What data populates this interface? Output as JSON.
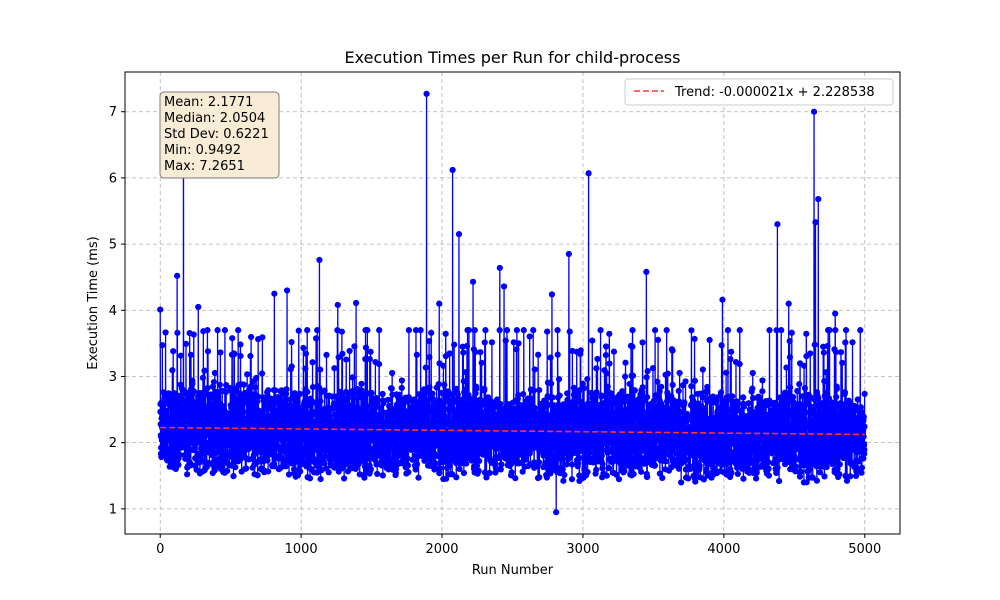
{
  "chart_data": {
    "type": "line",
    "title": "Execution Times per Run for child-process",
    "xlabel": "Run Number",
    "ylabel": "Execution Time (ms)",
    "xlim": [
      -250,
      5250
    ],
    "ylim": [
      0.62,
      7.6
    ],
    "xticks": [
      0,
      1000,
      2000,
      3000,
      4000,
      5000
    ],
    "yticks": [
      1,
      2,
      3,
      4,
      5,
      6,
      7
    ],
    "grid": true,
    "legend_position": "top-right",
    "colors": {
      "series": "#0000ff",
      "trend": "#ff3333",
      "stats_box_fill": "#f9ecd6",
      "stats_box_border": "#7a7a7a"
    },
    "series": [
      {
        "name": "",
        "n_points": 5000,
        "color": "#0000ff",
        "x_range": [
          0,
          4999
        ],
        "typical_range": [
          1.3,
          3.4
        ],
        "spikes": [
          {
            "x": 0,
            "y": 4.01
          },
          {
            "x": 120,
            "y": 4.52
          },
          {
            "x": 165,
            "y": 7.18
          },
          {
            "x": 270,
            "y": 4.05
          },
          {
            "x": 810,
            "y": 4.25
          },
          {
            "x": 900,
            "y": 4.3
          },
          {
            "x": 1130,
            "y": 4.76
          },
          {
            "x": 1260,
            "y": 4.08
          },
          {
            "x": 1390,
            "y": 4.11
          },
          {
            "x": 1890,
            "y": 7.27
          },
          {
            "x": 1980,
            "y": 4.1
          },
          {
            "x": 2075,
            "y": 6.12
          },
          {
            "x": 2120,
            "y": 5.15
          },
          {
            "x": 2220,
            "y": 4.43
          },
          {
            "x": 2410,
            "y": 4.64
          },
          {
            "x": 2440,
            "y": 4.36
          },
          {
            "x": 2780,
            "y": 4.24
          },
          {
            "x": 2900,
            "y": 4.85
          },
          {
            "x": 3040,
            "y": 6.07
          },
          {
            "x": 3450,
            "y": 4.58
          },
          {
            "x": 3990,
            "y": 4.16
          },
          {
            "x": 4380,
            "y": 5.3
          },
          {
            "x": 4460,
            "y": 4.1
          },
          {
            "x": 4640,
            "y": 7.0
          },
          {
            "x": 4650,
            "y": 5.33
          },
          {
            "x": 4670,
            "y": 5.68
          },
          {
            "x": 4790,
            "y": 3.95
          }
        ],
        "min_point": {
          "x": 2810,
          "y": 0.9492
        }
      },
      {
        "name": "Trend: -0.000021x + 2.228538",
        "type": "trend",
        "slope": -2.1e-05,
        "intercept": 2.228538,
        "color": "#ff3333",
        "style": "dashed"
      }
    ],
    "annotation": {
      "lines": [
        "Mean: 2.1771",
        "Median: 2.0504",
        "Std Dev: 0.6221",
        "Min: 0.9492",
        "Max: 7.2651"
      ],
      "position": "top-left"
    }
  }
}
